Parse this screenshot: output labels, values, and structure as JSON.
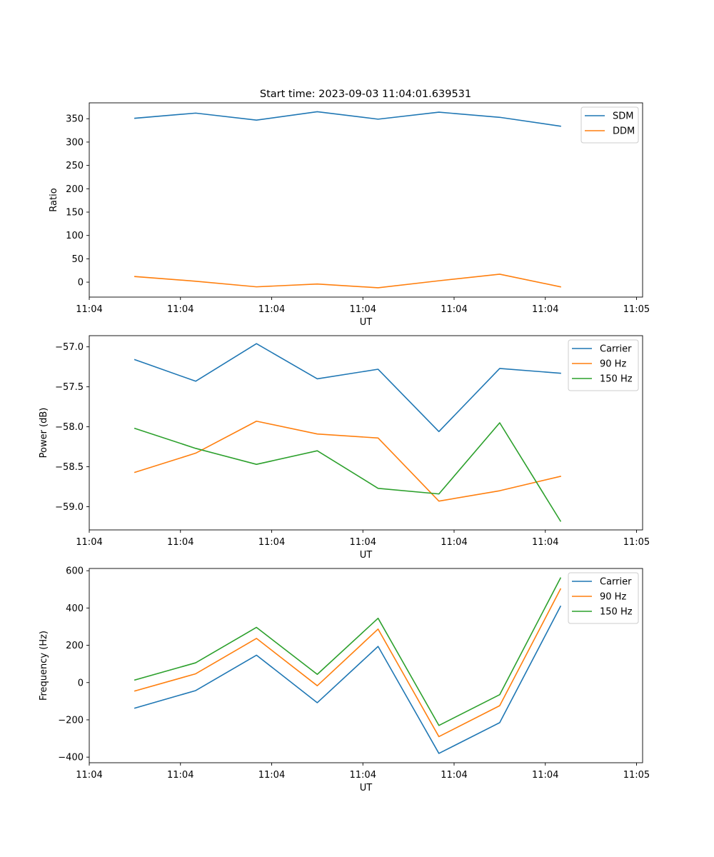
{
  "figure_title": "Start time: 2023-09-03 11:04:01.639531",
  "colors": {
    "blue": "#1f77b4",
    "orange": "#ff7f0e",
    "green": "#2ca02c"
  },
  "chart_data": [
    {
      "type": "line",
      "title": "Start time: 2023-09-03 11:04:01.639531",
      "xlabel": "UT",
      "ylabel": "Ratio",
      "xlim": [
        -0.75,
        8.35
      ],
      "ylim": [
        -32,
        384
      ],
      "x": [
        0,
        1,
        2,
        3,
        4,
        5,
        6,
        7
      ],
      "xticks": [
        {
          "value": -0.75,
          "label": "11:04"
        },
        {
          "value": 0.75,
          "label": "11:04"
        },
        {
          "value": 2.25,
          "label": "11:04"
        },
        {
          "value": 3.75,
          "label": "11:04"
        },
        {
          "value": 5.25,
          "label": "11:04"
        },
        {
          "value": 6.75,
          "label": "11:04"
        },
        {
          "value": 8.25,
          "label": "11:05"
        }
      ],
      "yticks": [
        0,
        50,
        100,
        150,
        200,
        250,
        300,
        350
      ],
      "legend_position": "top-right",
      "series": [
        {
          "name": "SDM",
          "color": "#1f77b4",
          "values": [
            351,
            362,
            347,
            365,
            349,
            364,
            353,
            334
          ]
        },
        {
          "name": "DDM",
          "color": "#ff7f0e",
          "values": [
            12,
            2,
            -10,
            -4,
            -12,
            3,
            17,
            -10
          ]
        }
      ]
    },
    {
      "type": "line",
      "title": "",
      "xlabel": "UT",
      "ylabel": "Power (dB)",
      "xlim": [
        -0.75,
        8.35
      ],
      "ylim": [
        -59.29,
        -56.86
      ],
      "x": [
        0,
        1,
        2,
        3,
        4,
        5,
        6,
        7
      ],
      "xticks": [
        {
          "value": -0.75,
          "label": "11:04"
        },
        {
          "value": 0.75,
          "label": "11:04"
        },
        {
          "value": 2.25,
          "label": "11:04"
        },
        {
          "value": 3.75,
          "label": "11:04"
        },
        {
          "value": 5.25,
          "label": "11:04"
        },
        {
          "value": 6.75,
          "label": "11:04"
        },
        {
          "value": 8.25,
          "label": "11:05"
        }
      ],
      "yticks": [
        -57.0,
        -57.5,
        -58.0,
        -58.5,
        -59.0
      ],
      "yticks_fixed": 1,
      "legend_position": "top-right",
      "series": [
        {
          "name": "Carrier",
          "color": "#1f77b4",
          "values": [
            -57.16,
            -57.43,
            -56.96,
            -57.4,
            -57.28,
            -58.06,
            -57.27,
            -57.33
          ]
        },
        {
          "name": "90 Hz",
          "color": "#ff7f0e",
          "values": [
            -58.57,
            -58.33,
            -57.93,
            -58.09,
            -58.14,
            -58.93,
            -58.8,
            -58.62
          ]
        },
        {
          "name": "150 Hz",
          "color": "#2ca02c",
          "values": [
            -58.02,
            -58.27,
            -58.47,
            -58.3,
            -58.77,
            -58.84,
            -57.95,
            -59.18
          ]
        }
      ]
    },
    {
      "type": "line",
      "title": "",
      "xlabel": "UT",
      "ylabel": "Frequency (Hz)",
      "xlim": [
        -0.75,
        8.35
      ],
      "ylim": [
        -430,
        612
      ],
      "x": [
        0,
        1,
        2,
        3,
        4,
        5,
        6,
        7
      ],
      "xticks": [
        {
          "value": -0.75,
          "label": "11:04"
        },
        {
          "value": 0.75,
          "label": "11:04"
        },
        {
          "value": 2.25,
          "label": "11:04"
        },
        {
          "value": 3.75,
          "label": "11:04"
        },
        {
          "value": 5.25,
          "label": "11:04"
        },
        {
          "value": 6.75,
          "label": "11:04"
        },
        {
          "value": 8.25,
          "label": "11:05"
        }
      ],
      "yticks": [
        -400,
        -200,
        0,
        200,
        400,
        600
      ],
      "legend_position": "top-right",
      "series": [
        {
          "name": "Carrier",
          "color": "#1f77b4",
          "values": [
            -137,
            -43,
            147,
            -108,
            194,
            -380,
            -215,
            409
          ]
        },
        {
          "name": "90 Hz",
          "color": "#ff7f0e",
          "values": [
            -45,
            47,
            237,
            -17,
            287,
            -290,
            -124,
            502
          ]
        },
        {
          "name": "150 Hz",
          "color": "#2ca02c",
          "values": [
            14,
            106,
            296,
            44,
            345,
            -230,
            -65,
            561
          ]
        }
      ]
    }
  ]
}
